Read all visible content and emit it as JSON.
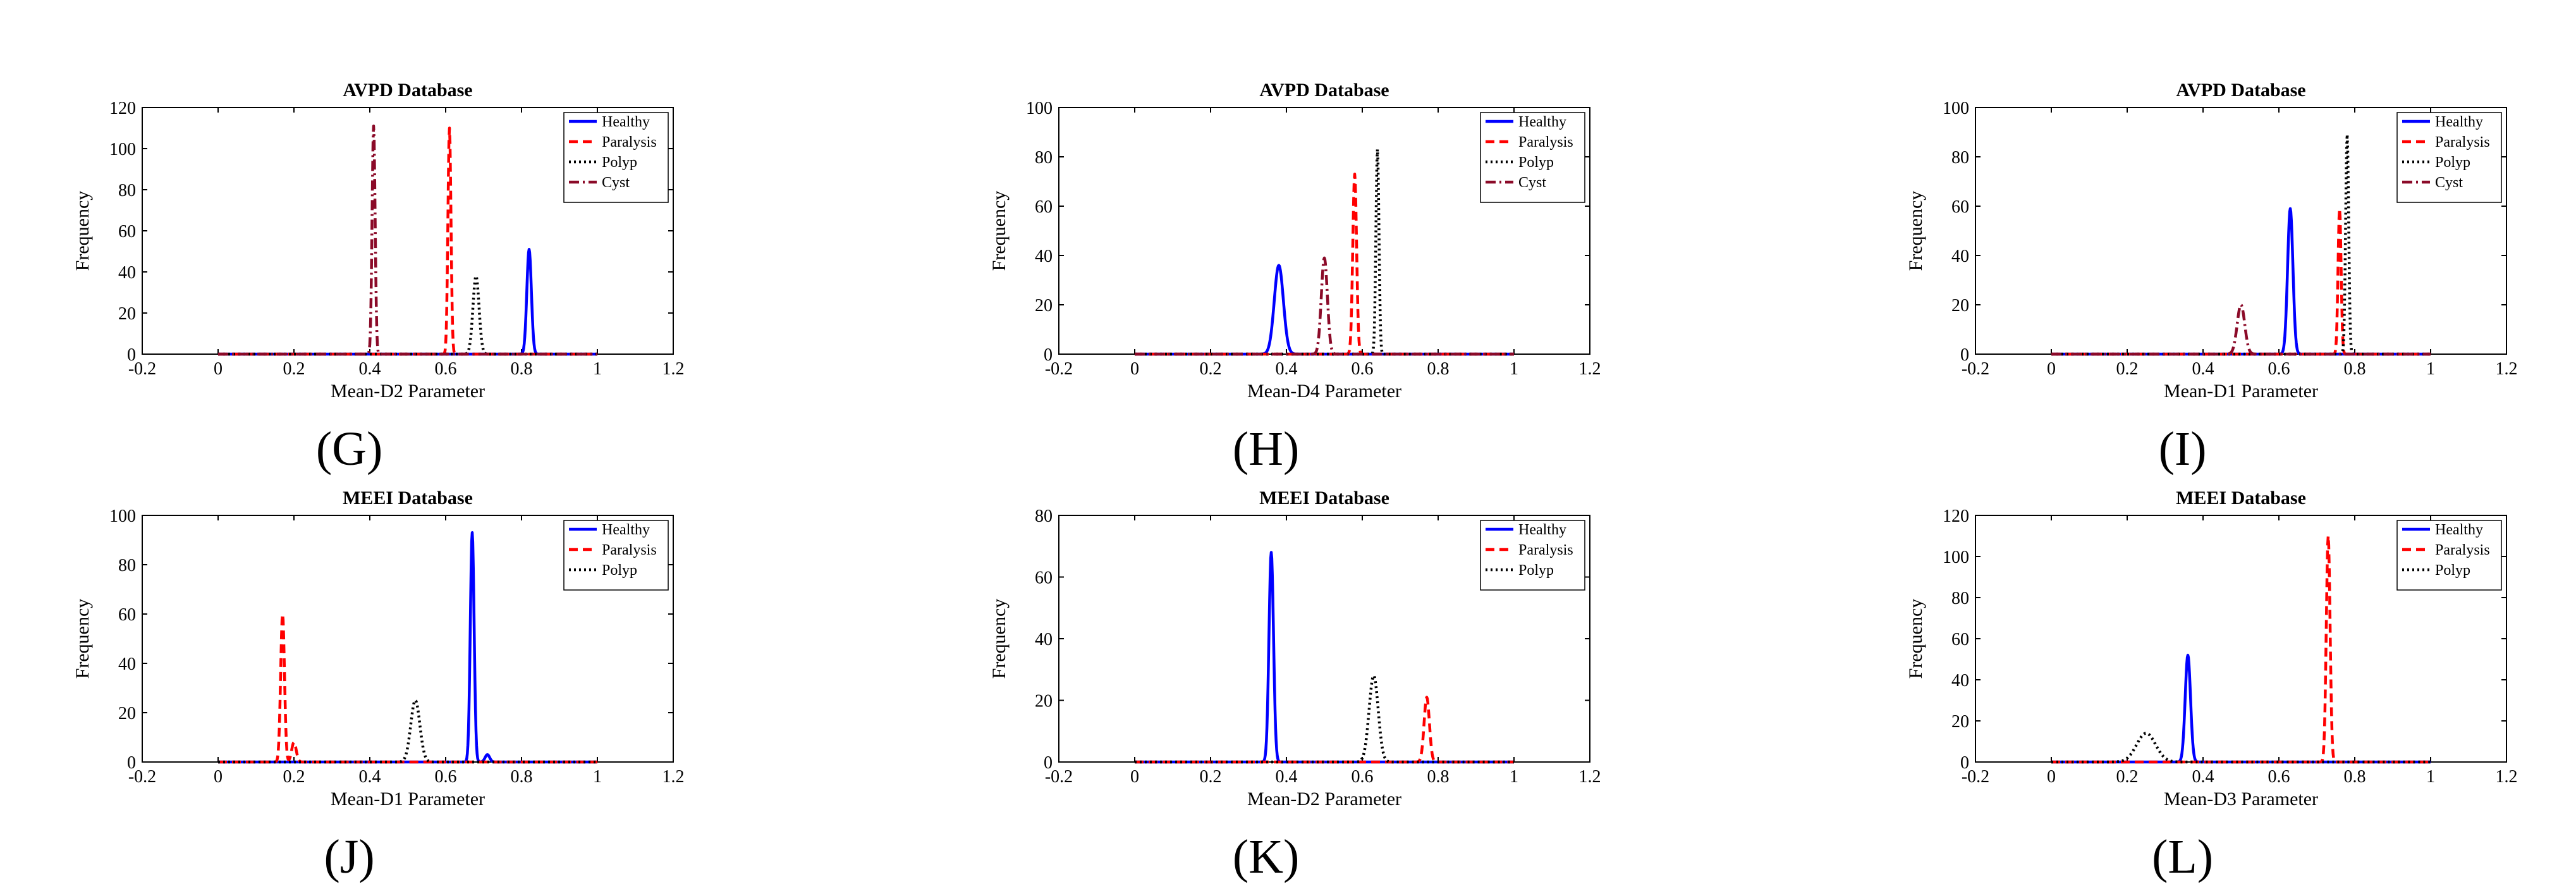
{
  "chart_data": [
    {
      "type": "line",
      "id": "G",
      "letter": "(G)",
      "title": "AVPD Database",
      "xlabel": "Mean-D2 Parameter",
      "ylabel": "Frequency",
      "xlim": [
        -0.2,
        1.2
      ],
      "ylim": [
        0,
        120
      ],
      "xticks": [
        -0.2,
        0,
        0.2,
        0.4,
        0.6,
        0.8,
        1,
        1.2
      ],
      "xticklabels": [
        "-0.2",
        "0",
        "0.2",
        "0.4",
        "0.6",
        "0.8",
        "1",
        "1.2"
      ],
      "yticks": [
        0,
        20,
        40,
        60,
        80,
        100,
        120
      ],
      "yticklabels": [
        "0",
        "20",
        "40",
        "60",
        "80",
        "100",
        "120"
      ],
      "legend": "top-right",
      "series": [
        {
          "name": "Healthy",
          "color": "#0000ff",
          "style": "solid",
          "peaks": [
            {
              "x": 0.82,
              "y": 51,
              "w": 0.006
            }
          ]
        },
        {
          "name": "Paralysis",
          "color": "#ff0000",
          "style": "dashed",
          "peaks": [
            {
              "x": 0.61,
              "y": 110,
              "w": 0.004
            }
          ]
        },
        {
          "name": "Polyp",
          "color": "#000000",
          "style": "dotted",
          "peaks": [
            {
              "x": 0.68,
              "y": 38,
              "w": 0.008
            }
          ]
        },
        {
          "name": "Cyst",
          "color": "#8b0a28",
          "style": "dashdot",
          "peaks": [
            {
              "x": 0.41,
              "y": 111,
              "w": 0.004
            }
          ]
        }
      ]
    },
    {
      "type": "line",
      "id": "H",
      "letter": "(H)",
      "title": "AVPD Database",
      "xlabel": "Mean-D4 Parameter",
      "ylabel": "Frequency",
      "xlim": [
        -0.2,
        1.2
      ],
      "ylim": [
        0,
        100
      ],
      "xticks": [
        -0.2,
        0,
        0.2,
        0.4,
        0.6,
        0.8,
        1,
        1.2
      ],
      "xticklabels": [
        "-0.2",
        "0",
        "0.2",
        "0.4",
        "0.6",
        "0.8",
        "1",
        "1.2"
      ],
      "yticks": [
        0,
        20,
        40,
        60,
        80,
        100
      ],
      "yticklabels": [
        "0",
        "20",
        "40",
        "60",
        "80",
        "100"
      ],
      "legend": "top-right",
      "series": [
        {
          "name": "Healthy",
          "color": "#0000ff",
          "style": "solid",
          "peaks": [
            {
              "x": 0.38,
              "y": 36,
              "w": 0.012
            }
          ]
        },
        {
          "name": "Paralysis",
          "color": "#ff0000",
          "style": "dashed",
          "peaks": [
            {
              "x": 0.58,
              "y": 73,
              "w": 0.005
            }
          ]
        },
        {
          "name": "Polyp",
          "color": "#000000",
          "style": "dotted",
          "peaks": [
            {
              "x": 0.64,
              "y": 83,
              "w": 0.004
            }
          ]
        },
        {
          "name": "Cyst",
          "color": "#8b0a28",
          "style": "dashdot",
          "peaks": [
            {
              "x": 0.5,
              "y": 39,
              "w": 0.008
            }
          ]
        }
      ]
    },
    {
      "type": "line",
      "id": "I",
      "letter": "(I)",
      "title": "AVPD Database",
      "xlabel": "Mean-D1 Parameter",
      "ylabel": "Frequency",
      "xlim": [
        -0.2,
        1.2
      ],
      "ylim": [
        0,
        100
      ],
      "xticks": [
        -0.2,
        0,
        0.2,
        0.4,
        0.6,
        0.8,
        1,
        1.2
      ],
      "xticklabels": [
        "-0.2",
        "0",
        "0.2",
        "0.4",
        "0.6",
        "0.8",
        "1",
        "1.2"
      ],
      "yticks": [
        0,
        20,
        40,
        60,
        80,
        100
      ],
      "yticklabels": [
        "0",
        "20",
        "40",
        "60",
        "80",
        "100"
      ],
      "legend": "top-right",
      "series": [
        {
          "name": "Healthy",
          "color": "#0000ff",
          "style": "solid",
          "peaks": [
            {
              "x": 0.63,
              "y": 59,
              "w": 0.007
            }
          ]
        },
        {
          "name": "Paralysis",
          "color": "#ff0000",
          "style": "dashed",
          "peaks": [
            {
              "x": 0.76,
              "y": 59,
              "w": 0.004
            }
          ]
        },
        {
          "name": "Polyp",
          "color": "#000000",
          "style": "dotted",
          "peaks": [
            {
              "x": 0.78,
              "y": 89,
              "w": 0.004
            }
          ]
        },
        {
          "name": "Cyst",
          "color": "#8b0a28",
          "style": "dashdot",
          "peaks": [
            {
              "x": 0.5,
              "y": 20,
              "w": 0.01
            }
          ]
        }
      ]
    },
    {
      "type": "line",
      "id": "J",
      "letter": "(J)",
      "title": "MEEI Database",
      "xlabel": "Mean-D1 Parameter",
      "ylabel": "Frequency",
      "xlim": [
        -0.2,
        1.2
      ],
      "ylim": [
        0,
        100
      ],
      "xticks": [
        -0.2,
        0,
        0.2,
        0.4,
        0.6,
        0.8,
        1,
        1.2
      ],
      "xticklabels": [
        "-0.2",
        "0",
        "0.2",
        "0.4",
        "0.6",
        "0.8",
        "1",
        "1.2"
      ],
      "yticks": [
        0,
        20,
        40,
        60,
        80,
        100
      ],
      "yticklabels": [
        "0",
        "20",
        "40",
        "60",
        "80",
        "100"
      ],
      "legend": "top-right",
      "series": [
        {
          "name": "Healthy",
          "color": "#0000ff",
          "style": "solid",
          "peaks": [
            {
              "x": 0.67,
              "y": 93,
              "w": 0.005
            },
            {
              "x": 0.71,
              "y": 3,
              "w": 0.006
            }
          ]
        },
        {
          "name": "Paralysis",
          "color": "#ff0000",
          "style": "dashed",
          "peaks": [
            {
              "x": 0.17,
              "y": 60,
              "w": 0.005
            },
            {
              "x": 0.2,
              "y": 8,
              "w": 0.006
            }
          ]
        },
        {
          "name": "Polyp",
          "color": "#000000",
          "style": "dotted",
          "peaks": [
            {
              "x": 0.52,
              "y": 25,
              "w": 0.012
            }
          ]
        }
      ]
    },
    {
      "type": "line",
      "id": "K",
      "letter": "(K)",
      "title": "MEEI Database",
      "xlabel": "Mean-D2 Parameter",
      "ylabel": "Frequency",
      "xlim": [
        -0.2,
        1.2
      ],
      "ylim": [
        0,
        80
      ],
      "xticks": [
        -0.2,
        0,
        0.2,
        0.4,
        0.6,
        0.8,
        1,
        1.2
      ],
      "xticklabels": [
        "-0.2",
        "0",
        "0.2",
        "0.4",
        "0.6",
        "0.8",
        "1",
        "1.2"
      ],
      "yticks": [
        0,
        20,
        40,
        60,
        80
      ],
      "yticklabels": [
        "0",
        "20",
        "40",
        "60",
        "80"
      ],
      "legend": "top-right",
      "series": [
        {
          "name": "Healthy",
          "color": "#0000ff",
          "style": "solid",
          "peaks": [
            {
              "x": 0.36,
              "y": 68,
              "w": 0.006
            }
          ]
        },
        {
          "name": "Paralysis",
          "color": "#ff0000",
          "style": "dashed",
          "peaks": [
            {
              "x": 0.77,
              "y": 21,
              "w": 0.007
            }
          ]
        },
        {
          "name": "Polyp",
          "color": "#000000",
          "style": "dotted",
          "peaks": [
            {
              "x": 0.63,
              "y": 28,
              "w": 0.012
            }
          ]
        }
      ]
    },
    {
      "type": "line",
      "id": "L",
      "letter": "(L)",
      "title": "MEEI Database",
      "xlabel": "Mean-D3 Parameter",
      "ylabel": "Frequency",
      "xlim": [
        -0.2,
        1.2
      ],
      "ylim": [
        0,
        120
      ],
      "xticks": [
        -0.2,
        0,
        0.2,
        0.4,
        0.6,
        0.8,
        1,
        1.2
      ],
      "xticklabels": [
        "-0.2",
        "0",
        "0.2",
        "0.4",
        "0.6",
        "0.8",
        "1",
        "1.2"
      ],
      "yticks": [
        0,
        20,
        40,
        60,
        80,
        100,
        120
      ],
      "yticklabels": [
        "0",
        "20",
        "40",
        "60",
        "80",
        "100",
        "120"
      ],
      "legend": "top-right",
      "series": [
        {
          "name": "Healthy",
          "color": "#0000ff",
          "style": "solid",
          "peaks": [
            {
              "x": 0.36,
              "y": 52,
              "w": 0.007
            }
          ]
        },
        {
          "name": "Paralysis",
          "color": "#ff0000",
          "style": "dashed",
          "peaks": [
            {
              "x": 0.73,
              "y": 110,
              "w": 0.005
            }
          ]
        },
        {
          "name": "Polyp",
          "color": "#000000",
          "style": "dotted",
          "peaks": [
            {
              "x": 0.25,
              "y": 14,
              "w": 0.025
            }
          ]
        }
      ]
    }
  ]
}
